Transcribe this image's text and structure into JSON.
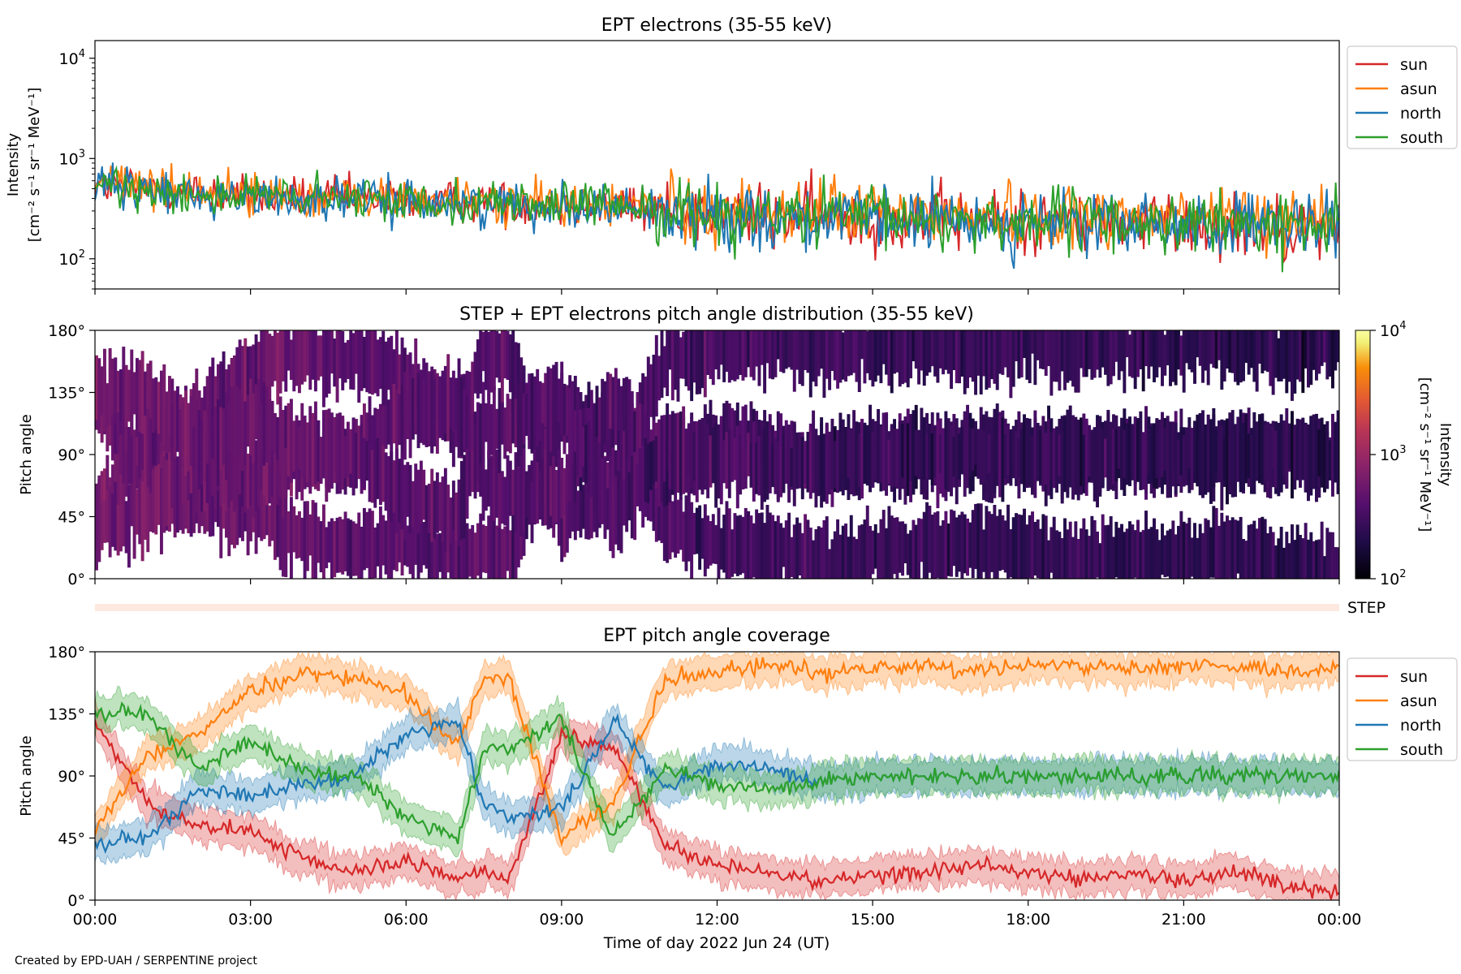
{
  "footer": {
    "credit": "Created by EPD-UAH / SERPENTINE project"
  },
  "chart_data": [
    {
      "type": "line",
      "title": "EPT electrons (35-55 keV)",
      "ylabel_line1": "Intensity",
      "ylabel_line2": "[cm⁻² s⁻¹ sr⁻¹ MeV⁻¹]",
      "yscale": "log",
      "ylim": [
        50,
        15000
      ],
      "yticks": [
        {
          "value": 100,
          "base": "10",
          "exp": "2"
        },
        {
          "value": 1000,
          "base": "10",
          "exp": "3"
        },
        {
          "value": 10000,
          "base": "10",
          "exp": "4"
        }
      ],
      "xlim": [
        0,
        24
      ],
      "legend_placement": "outside-right-top",
      "series": [
        {
          "name": "sun",
          "color": "#d62728",
          "x": [
            0,
            1,
            2,
            3,
            4,
            5,
            6,
            7,
            8,
            9,
            10,
            11,
            12,
            13,
            14,
            15,
            16,
            17,
            18,
            19,
            20,
            21,
            22,
            23,
            24
          ],
          "y": [
            550,
            500,
            450,
            420,
            400,
            390,
            380,
            370,
            360,
            350,
            340,
            300,
            280,
            270,
            260,
            250,
            250,
            240,
            240,
            230,
            230,
            220,
            220,
            210,
            200
          ]
        },
        {
          "name": "asun",
          "color": "#ff7f0e",
          "x": [
            0,
            1,
            2,
            3,
            4,
            5,
            6,
            7,
            8,
            9,
            10,
            11,
            12,
            13,
            14,
            15,
            16,
            17,
            18,
            19,
            20,
            21,
            22,
            23,
            24
          ],
          "y": [
            600,
            550,
            480,
            440,
            420,
            400,
            390,
            380,
            370,
            360,
            350,
            320,
            300,
            290,
            290,
            280,
            280,
            280,
            270,
            270,
            270,
            270,
            260,
            260,
            250
          ]
        },
        {
          "name": "north",
          "color": "#1f77b4",
          "x": [
            0,
            1,
            2,
            3,
            4,
            5,
            6,
            7,
            8,
            9,
            10,
            11,
            12,
            13,
            14,
            15,
            16,
            17,
            18,
            19,
            20,
            21,
            22,
            23,
            24
          ],
          "y": [
            520,
            480,
            430,
            410,
            390,
            380,
            370,
            360,
            350,
            340,
            330,
            290,
            270,
            260,
            250,
            240,
            240,
            230,
            230,
            220,
            220,
            210,
            210,
            200,
            200
          ]
        },
        {
          "name": "south",
          "color": "#2ca02c",
          "x": [
            0,
            1,
            2,
            3,
            4,
            5,
            6,
            7,
            8,
            9,
            10,
            11,
            12,
            13,
            14,
            15,
            16,
            17,
            18,
            19,
            20,
            21,
            22,
            23,
            24
          ],
          "y": [
            540,
            500,
            440,
            420,
            400,
            390,
            380,
            370,
            360,
            350,
            340,
            300,
            280,
            270,
            260,
            250,
            250,
            240,
            240,
            230,
            230,
            220,
            220,
            210,
            210
          ]
        }
      ]
    },
    {
      "type": "heatmap",
      "title": "STEP + EPT electrons pitch angle distribution (35-55 keV)",
      "ylabel": "Pitch angle",
      "ylim": [
        0,
        180
      ],
      "yticks": [
        "0°",
        "45°",
        "90°",
        "135°",
        "180°"
      ],
      "xlim": [
        0,
        24
      ],
      "colorbar": {
        "label_line1": "Intensity",
        "label_line2": "[cm⁻² s⁻¹ sr⁻¹ MeV⁻¹]",
        "scale": "log",
        "range": [
          100,
          10000
        ],
        "ticks": [
          {
            "base": "10",
            "exp": "2"
          },
          {
            "base": "10",
            "exp": "3"
          },
          {
            "base": "10",
            "exp": "4"
          }
        ],
        "colormap": "inferno"
      },
      "intensity_trend": {
        "x": [
          0,
          3,
          6,
          9,
          12,
          15,
          18,
          21,
          24
        ],
        "intensity": [
          600,
          500,
          420,
          380,
          320,
          280,
          260,
          240,
          230
        ]
      }
    },
    {
      "type": "bar",
      "label": "STEP",
      "color": "#fde9df"
    },
    {
      "type": "line",
      "title": "EPT pitch angle coverage",
      "ylabel": "Pitch angle",
      "ylim": [
        0,
        180
      ],
      "yticks": [
        "0°",
        "45°",
        "90°",
        "135°",
        "180°"
      ],
      "xlim": [
        0,
        24
      ],
      "xticks": [
        "00:00",
        "03:00",
        "06:00",
        "09:00",
        "12:00",
        "15:00",
        "18:00",
        "21:00",
        "00:00"
      ],
      "xlabel": "Time of day 2022 Jun 24 (UT)",
      "legend_placement": "outside-right-top",
      "band_halfwidth": 12,
      "series": [
        {
          "name": "sun",
          "color": "#d62728",
          "x": [
            0,
            1,
            2,
            3,
            4,
            5,
            6,
            7,
            7.5,
            8,
            9,
            10,
            11,
            12,
            13,
            14,
            15,
            16,
            17,
            18,
            19,
            20,
            21,
            22,
            23,
            24
          ],
          "y": [
            130,
            70,
            55,
            50,
            30,
            20,
            28,
            15,
            20,
            15,
            120,
            110,
            40,
            25,
            20,
            15,
            18,
            20,
            25,
            20,
            15,
            18,
            15,
            20,
            10,
            5
          ]
        },
        {
          "name": "asun",
          "color": "#ff7f0e",
          "x": [
            0,
            1,
            2,
            3,
            4,
            5,
            6,
            7,
            7.5,
            8,
            9,
            10,
            11,
            12,
            13,
            14,
            15,
            16,
            17,
            18,
            19,
            20,
            21,
            22,
            23,
            24
          ],
          "y": [
            50,
            105,
            120,
            150,
            165,
            160,
            150,
            110,
            160,
            160,
            45,
            70,
            160,
            165,
            170,
            165,
            168,
            170,
            165,
            170,
            170,
            168,
            170,
            170,
            165,
            170
          ]
        },
        {
          "name": "north",
          "color": "#1f77b4",
          "x": [
            0,
            1,
            2,
            3,
            4,
            5,
            6,
            7,
            7.5,
            8,
            9,
            10,
            11,
            12,
            13,
            14,
            15,
            16,
            17,
            18,
            19,
            20,
            21,
            22,
            23,
            24
          ],
          "y": [
            40,
            45,
            80,
            75,
            85,
            90,
            120,
            130,
            70,
            60,
            65,
            130,
            80,
            100,
            95,
            85,
            90,
            90,
            90,
            90,
            90,
            90,
            90,
            90,
            90,
            90
          ]
        },
        {
          "name": "south",
          "color": "#2ca02c",
          "x": [
            0,
            1,
            2,
            3,
            4,
            5,
            6,
            7,
            7.5,
            8,
            9,
            10,
            11,
            12,
            13,
            14,
            15,
            16,
            17,
            18,
            19,
            20,
            21,
            22,
            23,
            24
          ],
          "y": [
            135,
            135,
            95,
            115,
            95,
            90,
            60,
            45,
            110,
            110,
            130,
            45,
            95,
            85,
            80,
            85,
            90,
            90,
            90,
            90,
            90,
            90,
            90,
            90,
            90,
            90
          ]
        }
      ]
    }
  ]
}
